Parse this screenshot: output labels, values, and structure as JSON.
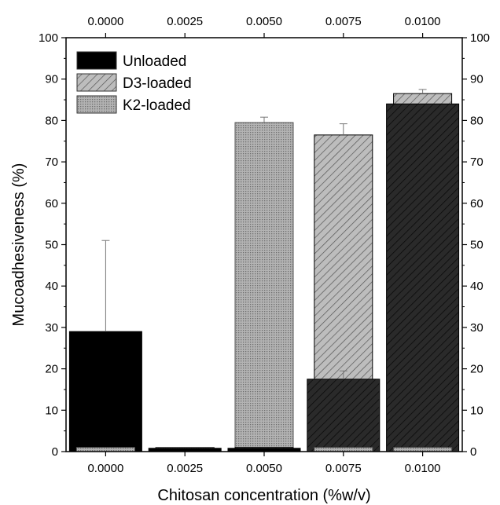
{
  "chart_data": {
    "type": "bar",
    "xlabel": "Chitosan concentration (%w/v)",
    "ylabel": "Mucoadhesiveness (%)",
    "ylim": [
      0,
      100
    ],
    "yticks": [
      0,
      10,
      20,
      30,
      40,
      50,
      60,
      70,
      80,
      90,
      100
    ],
    "categories": [
      "0.0000",
      "0.0025",
      "0.0050",
      "0.0075",
      "0.0100"
    ],
    "legend_position": "top-left",
    "bars_overlap": true,
    "series": [
      {
        "name": "Unloaded",
        "values": [
          29,
          0.8,
          0.8,
          17.5,
          84
        ],
        "errors": [
          22,
          0,
          0,
          2,
          0
        ],
        "color": "#000000",
        "pattern": "solid"
      },
      {
        "name": "D3-loaded",
        "values": [
          1,
          1,
          1,
          76.5,
          86.5
        ],
        "errors": [
          0,
          0,
          0,
          2.7,
          1
        ],
        "color": "#b4b4b4",
        "pattern": "diagonal-hatch"
      },
      {
        "name": "K2-loaded",
        "values": [
          1,
          1,
          79.5,
          1,
          1
        ],
        "errors": [
          0,
          0,
          1.3,
          0,
          0
        ],
        "color": "#a6a6a6",
        "pattern": "dotted"
      }
    ]
  }
}
